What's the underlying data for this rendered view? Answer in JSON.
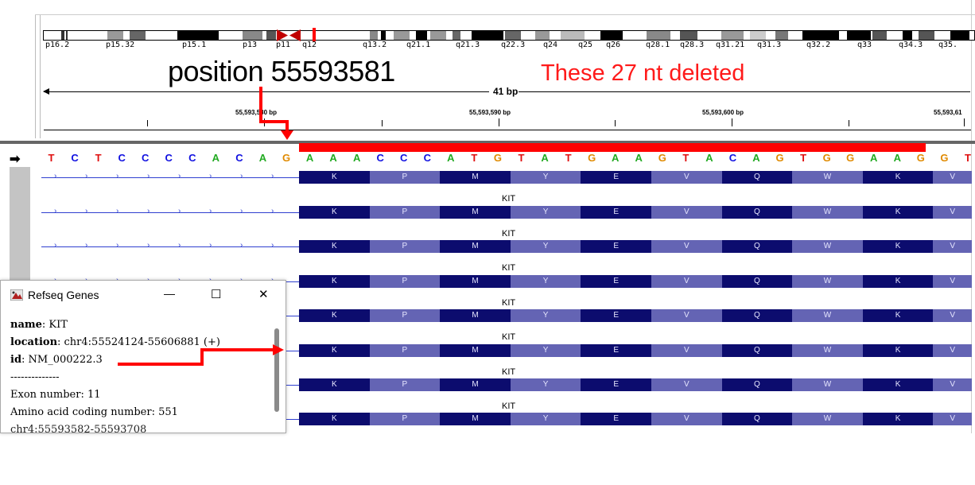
{
  "ideogram": {
    "bands": [
      "p16.2",
      "p15.32",
      "p15.1",
      "p13",
      "p11",
      "q12",
      "q13.2",
      "q21.1",
      "q21.3",
      "q22.3",
      "q24",
      "q25",
      "q26",
      "q28.1",
      "q28.3",
      "q31.21",
      "q31.3",
      "q32.2",
      "q33",
      "q34.3",
      "q35."
    ]
  },
  "ruler": {
    "span_label": "41 bp",
    "ticks": [
      "55,593,580 bp",
      "55,593,590 bp",
      "55,593,600 bp",
      "55,593,61"
    ]
  },
  "annotations": {
    "position": "position 55593581",
    "deleted": "These 27 nt deleted"
  },
  "sequence": {
    "bases": [
      "T",
      "C",
      "T",
      "C",
      "C",
      "C",
      "C",
      "A",
      "C",
      "A",
      "G",
      "A",
      "A",
      "A",
      "C",
      "C",
      "C",
      "A",
      "T",
      "G",
      "T",
      "A",
      "T",
      "G",
      "A",
      "A",
      "G",
      "T",
      "A",
      "C",
      "A",
      "G",
      "T",
      "G",
      "G",
      "A",
      "A",
      "G",
      "G",
      "T"
    ],
    "colors": {
      "A": "#22aa22",
      "C": "#1010e0",
      "G": "#e08a00",
      "T": "#e01010"
    },
    "deletion_highlight_color": "#ff0000"
  },
  "tracks": {
    "amino_acids": [
      "K",
      "P",
      "M",
      "Y",
      "E",
      "V",
      "Q",
      "W",
      "K",
      "V"
    ],
    "gene_label": "KIT",
    "rows": 8,
    "colors": {
      "dark": "#0c0c6e",
      "light": "#6464b4",
      "intron": "#2f3fd0"
    }
  },
  "popup": {
    "title": "Refseq Genes",
    "minimize": "—",
    "maximize": "☐",
    "close": "✕",
    "lines": [
      {
        "label": "name",
        "value": ": KIT"
      },
      {
        "label": "location",
        "value": ": chr4:55524124-55606881 (+)"
      },
      {
        "label": "id",
        "value": ": NM_000222.3"
      }
    ],
    "separator": "--------------",
    "exon": "Exon number: 11",
    "aa_coding": "Amino acid coding number: 551",
    "partial": "chr4:55593582-55593708"
  }
}
